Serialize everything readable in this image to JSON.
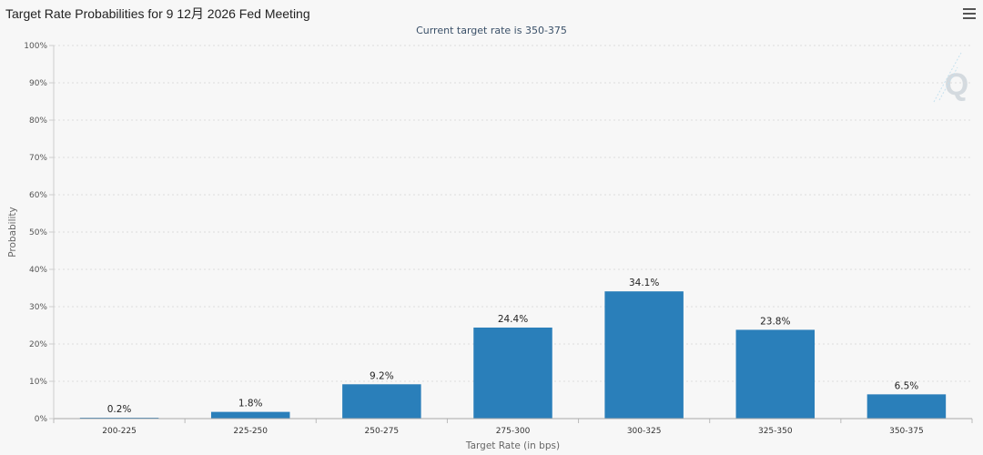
{
  "header": {
    "title": "Target Rate Probabilities for 9 12月 2026 Fed Meeting",
    "menu_icon": "hamburger-menu-icon"
  },
  "watermark": {
    "icon": "q-logo-watermark"
  },
  "chart_data": {
    "type": "bar",
    "title": "Target Rate Probabilities for 9 12月 2026 Fed Meeting",
    "subtitle": "Current target rate is 350-375",
    "xlabel": "Target Rate (in bps)",
    "ylabel": "Probability",
    "categories": [
      "200-225",
      "225-250",
      "250-275",
      "275-300",
      "300-325",
      "325-350",
      "350-375"
    ],
    "values": [
      0.2,
      1.8,
      9.2,
      24.4,
      34.1,
      23.8,
      6.5
    ],
    "data_labels": [
      "0.2%",
      "1.8%",
      "9.2%",
      "24.4%",
      "34.1%",
      "23.8%",
      "6.5%"
    ],
    "ylim": [
      0,
      100
    ],
    "yticks": [
      "0%",
      "10%",
      "20%",
      "30%",
      "40%",
      "50%",
      "60%",
      "70%",
      "80%",
      "90%",
      "100%"
    ],
    "grid": true,
    "bar_color": "#2a7fba"
  }
}
